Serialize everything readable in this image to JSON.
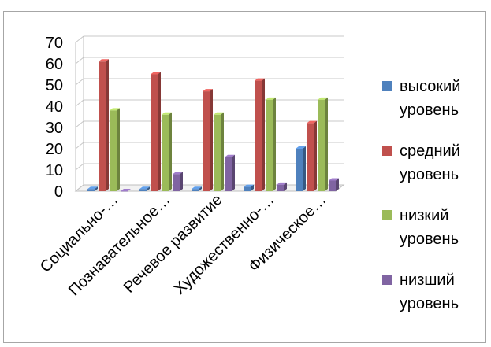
{
  "chart_data": {
    "type": "bar",
    "title": "",
    "categories": [
      "Социально-…",
      "Познавательное…",
      "Речевое развитие",
      "Художественно-…",
      "Физическое…"
    ],
    "series": [
      {
        "name": "высокий уровень",
        "color": "#4f81bd",
        "values": [
          1,
          1,
          1,
          2,
          20
        ]
      },
      {
        "name": "средний уровень",
        "color": "#c0504d",
        "values": [
          61,
          55,
          47,
          52,
          32
        ]
      },
      {
        "name": "низкий уровень",
        "color": "#9bbb59",
        "values": [
          38,
          36,
          36,
          43,
          43
        ]
      },
      {
        "name": "низший уровень",
        "color": "#8064a2",
        "values": [
          0,
          8,
          16,
          3,
          5
        ]
      }
    ],
    "yticks": [
      "0",
      "10",
      "20",
      "30",
      "40",
      "50",
      "60",
      "70"
    ],
    "ylim": [
      0,
      70
    ],
    "grid": true,
    "legend_position": "right"
  }
}
